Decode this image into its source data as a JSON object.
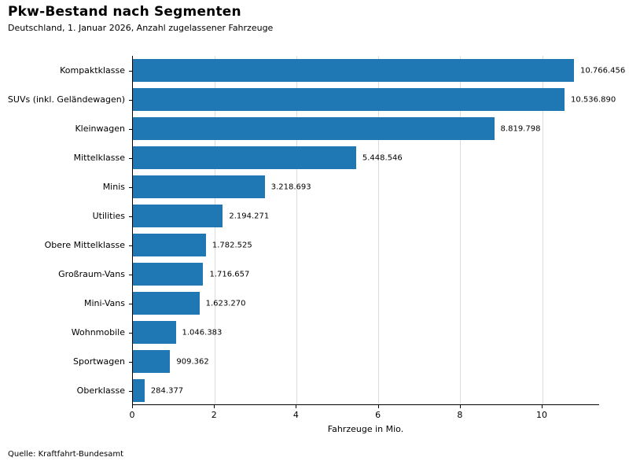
{
  "chart_data": {
    "type": "bar",
    "orientation": "horizontal",
    "title": "Pkw-Bestand nach Segmenten",
    "subtitle": "Deutschland, 1. Januar 2026, Anzahl zugelassener Fahrzeuge",
    "xlabel": "Fahrzeuge in Mio.",
    "source": "Quelle: Kraftfahrt-Bundesamt",
    "xlim": [
      0,
      11.4
    ],
    "xticks": [
      0,
      2,
      4,
      6,
      8,
      10
    ],
    "grid": "vertical-light-gray",
    "legend": "none",
    "bar_color": "#1f77b4",
    "gridline_color": "#dcdcdc",
    "categories": [
      "Kompaktklasse",
      "SUVs (inkl. Geländewagen)",
      "Kleinwagen",
      "Mittelklasse",
      "Minis",
      "Utilities",
      "Obere Mittelklasse",
      "Großraum-Vans",
      "Mini-Vans",
      "Wohnmobile",
      "Sportwagen",
      "Oberklasse"
    ],
    "values": [
      10766456,
      10536890,
      8819798,
      5448546,
      3218693,
      2194271,
      1782525,
      1716657,
      1623270,
      1046383,
      909362,
      284377
    ],
    "value_labels": [
      "10.766.456",
      "10.536.890",
      "8.819.798",
      "5.448.546",
      "3.218.693",
      "2.194.271",
      "1.782.525",
      "1.716.657",
      "1.623.270",
      "1.046.383",
      "909.362",
      "284.377"
    ]
  }
}
